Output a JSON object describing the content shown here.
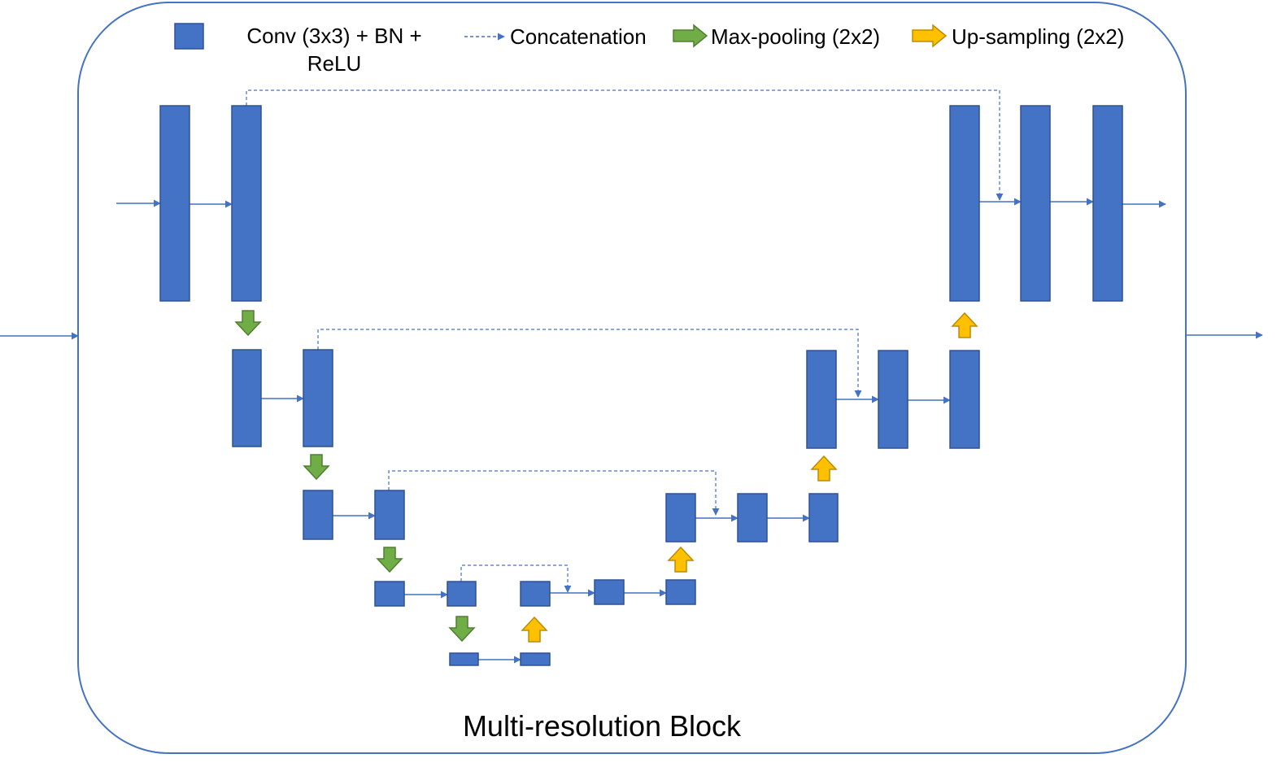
{
  "caption": "Multi-resolution Block",
  "legend": {
    "conv_line1": "Conv (3x3) + BN +",
    "conv_line2": "ReLU",
    "concat": "Concatenation",
    "maxpool": "Max-pooling (2x2)",
    "upsample": "Up-sampling (2x2)"
  },
  "colors": {
    "block": "#4472C4",
    "block_border": "#2F528F",
    "line": "#4472C4",
    "maxpool_fill": "#70AD47",
    "maxpool_stroke": "#507E32",
    "upsample_fill": "#FFC000",
    "upsample_stroke": "#BC8C00"
  },
  "icons": {
    "conv": "blue-rectangle",
    "concat": "dashed-arrow",
    "maxpool": "green-down-arrow",
    "upsample": "yellow-up-arrow"
  }
}
